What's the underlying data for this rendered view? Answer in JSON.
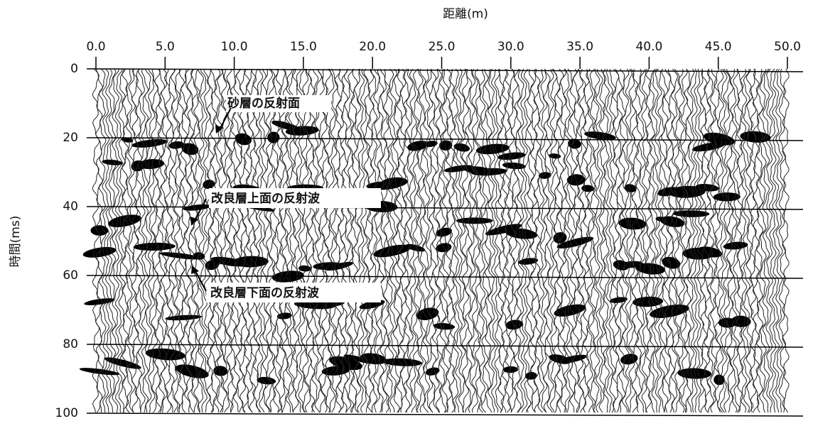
{
  "chart_data": {
    "type": "seismic",
    "title": "距離(m)",
    "y_label": "時間(ms)",
    "xlim": [
      0,
      50
    ],
    "xticks": [
      {
        "value": 0,
        "label": "0.0"
      },
      {
        "value": 5,
        "label": "5.0"
      },
      {
        "value": 10,
        "label": "10.0"
      },
      {
        "value": 15,
        "label": "15.0"
      },
      {
        "value": 20,
        "label": "20.0"
      },
      {
        "value": 25,
        "label": "25.0"
      },
      {
        "value": 30,
        "label": "30.0"
      },
      {
        "value": 35,
        "label": "35.0"
      },
      {
        "value": 40,
        "label": "40.0"
      },
      {
        "value": 45,
        "label": "45.0"
      },
      {
        "value": 50,
        "label": "50.0"
      }
    ],
    "ylim": [
      0,
      100
    ],
    "yticks": [
      0,
      20,
      40,
      60,
      80,
      100
    ],
    "y_inverted": true,
    "grid": true,
    "annotations": [
      "砂層の反射面",
      "改良層上面の反射波",
      "改良層下面の反射波"
    ]
  }
}
